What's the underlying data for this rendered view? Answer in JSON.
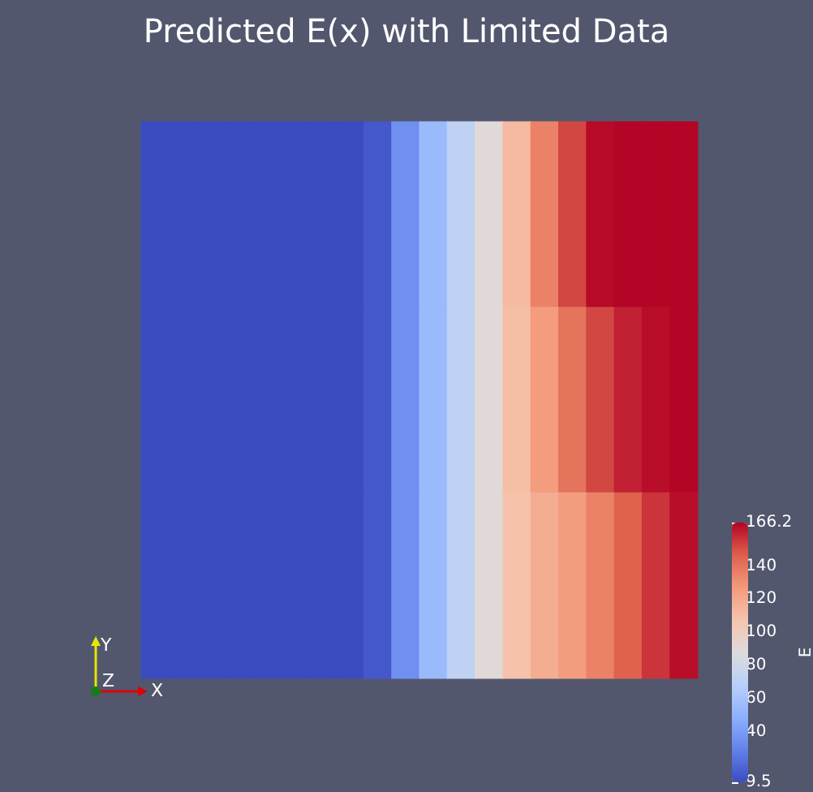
{
  "chart_data": {
    "type": "heatmap",
    "title": "Predicted E(x) with Limited Data",
    "clabel": "E",
    "categories": [
      null,
      null,
      null,
      null,
      null,
      null,
      null,
      null,
      null,
      null,
      null,
      null,
      null,
      null,
      null,
      null,
      null,
      null,
      null,
      null
    ],
    "y_categories": [
      null,
      null,
      null
    ],
    "cells": [
      [
        9.5,
        9.5,
        9.5,
        9.5,
        9.5,
        9.5,
        9.5,
        9.5,
        14,
        35,
        55,
        72,
        90,
        112,
        135,
        152,
        165,
        166,
        166,
        166
      ],
      [
        9.5,
        9.5,
        9.5,
        9.5,
        9.5,
        9.5,
        9.5,
        9.5,
        14,
        35,
        55,
        72,
        90,
        110,
        126,
        140,
        152,
        160,
        164,
        166
      ],
      [
        9.5,
        9.5,
        9.5,
        9.5,
        9.5,
        9.5,
        9.5,
        9.5,
        14,
        35,
        55,
        72,
        90,
        108,
        118,
        126,
        135,
        146,
        156,
        164
      ]
    ],
    "clim": [
      9.5,
      166.2
    ],
    "cticks": [
      9.5,
      40,
      60,
      80,
      100,
      120,
      140,
      166.2
    ],
    "annotations": [
      "Y",
      "Z",
      "X"
    ]
  }
}
